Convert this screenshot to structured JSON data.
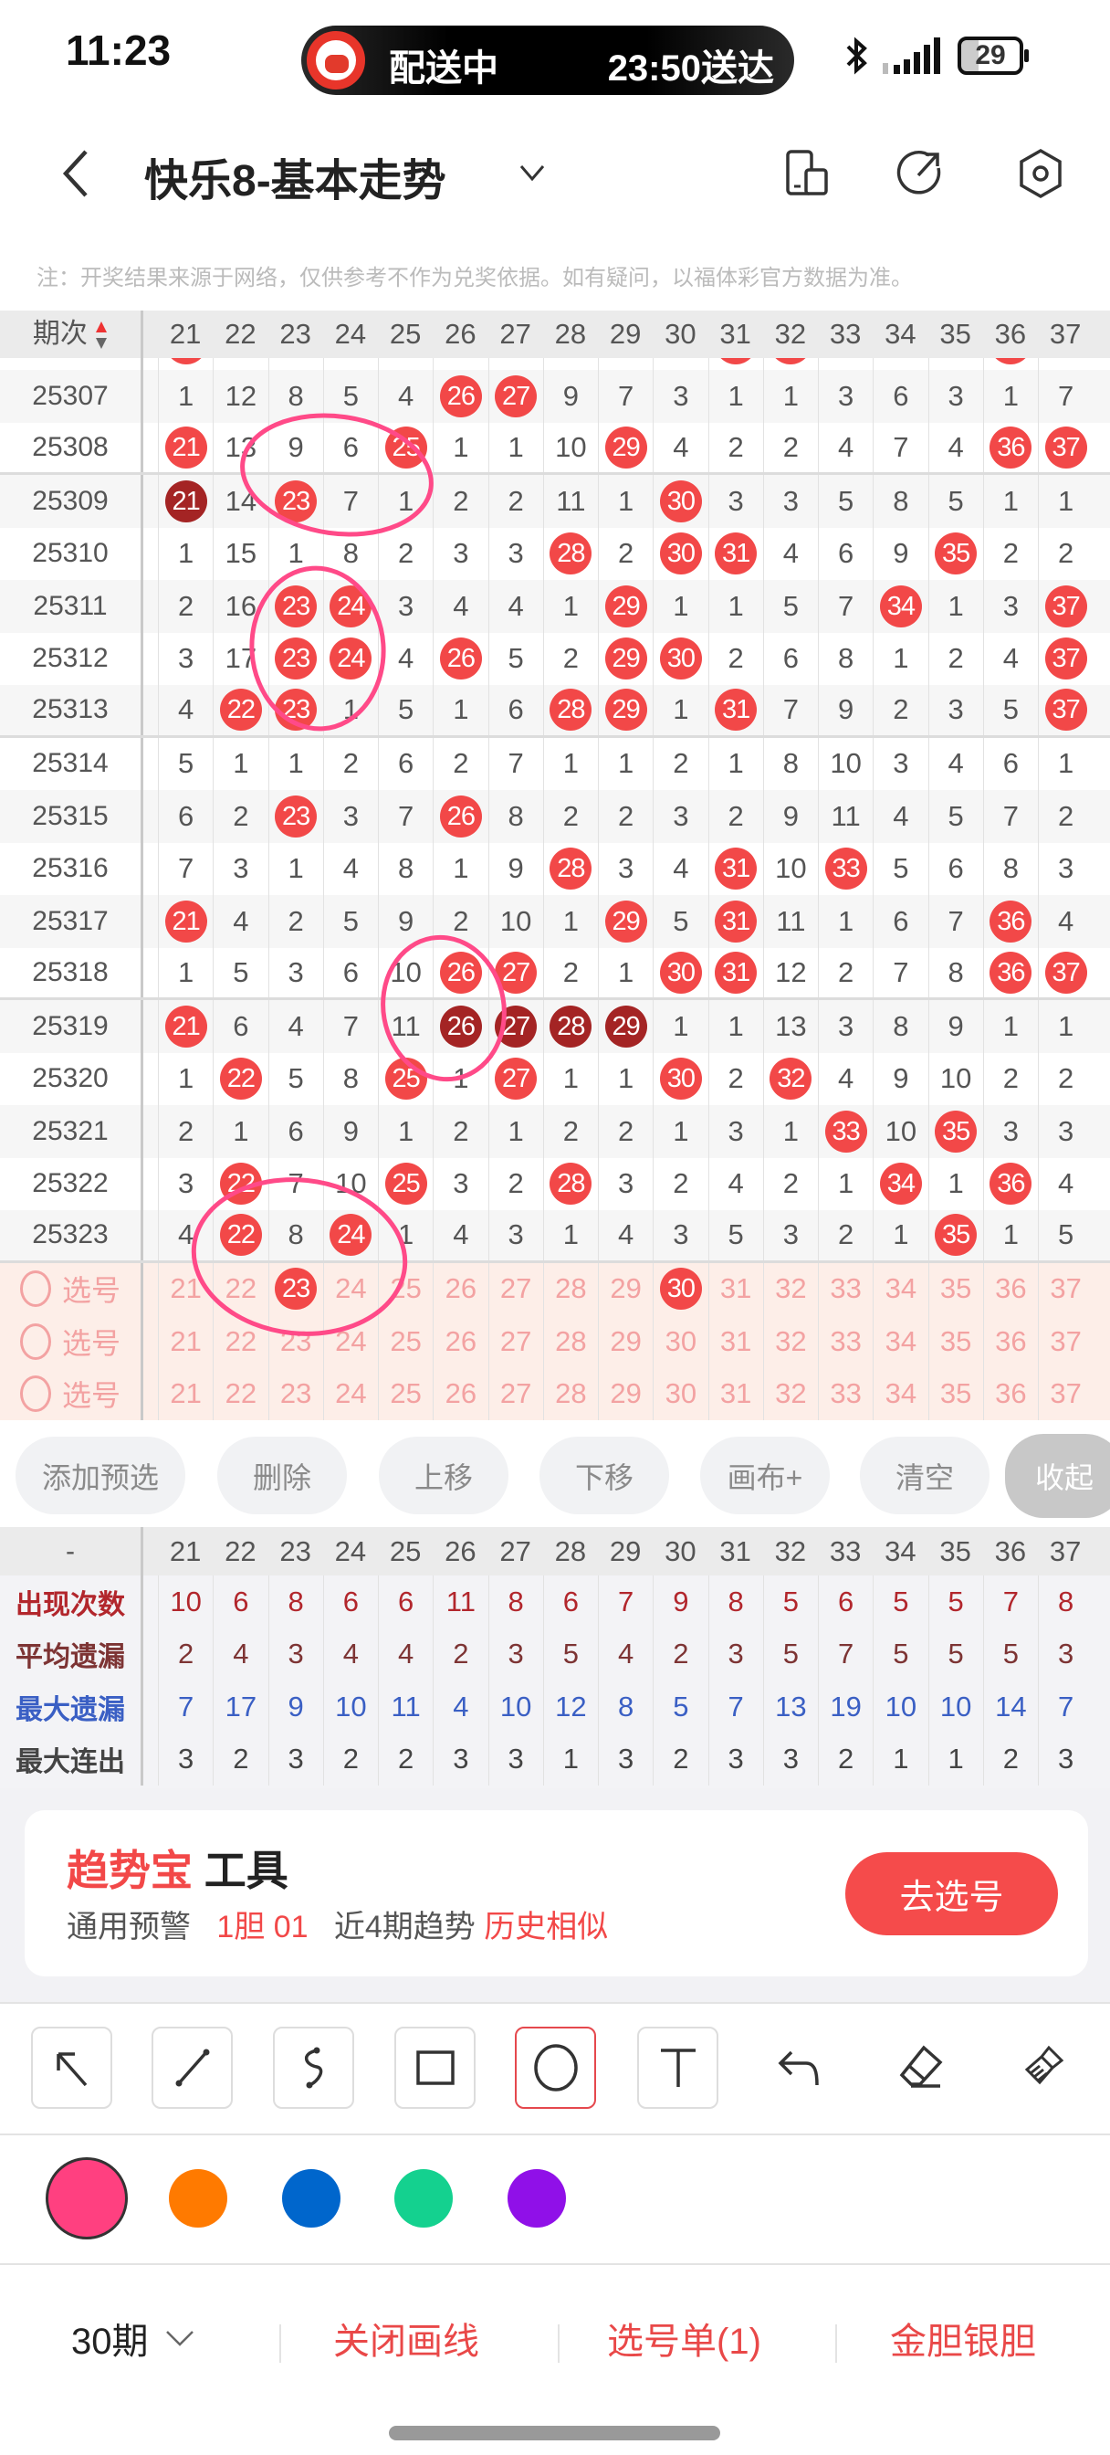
{
  "status_bar": {
    "time": "11:23",
    "live_activity": {
      "status": "配送中",
      "eta": "23:50送达"
    },
    "battery": "29",
    "icons": [
      "bluetooth-icon",
      "signal-icon",
      "battery-icon"
    ]
  },
  "header": {
    "title": "快乐8-基本走势",
    "icons": [
      "back-icon",
      "chevron-down-icon",
      "screen-rotate-icon",
      "share-icon",
      "settings-icon"
    ]
  },
  "note": "注：开奖结果来源于网络，仅供参考不作为兑奖依据。如有疑问，以福体彩官方数据为准。",
  "table": {
    "header_label": "期次",
    "columns": [
      "21",
      "22",
      "23",
      "24",
      "25",
      "26",
      "27",
      "28",
      "29",
      "30",
      "31",
      "32",
      "33",
      "34",
      "35",
      "36",
      "37"
    ],
    "partial_top_hits": [
      "21",
      "31",
      "32",
      "36"
    ],
    "rows": [
      {
        "issue": "25307",
        "values": [
          "1",
          "12",
          "8",
          "5",
          "4",
          "26",
          "27",
          "9",
          "7",
          "3",
          "1",
          "1",
          "3",
          "6",
          "3",
          "1",
          "7"
        ],
        "hits": [
          "26",
          "27"
        ],
        "dark": []
      },
      {
        "issue": "25308",
        "values": [
          "21",
          "13",
          "9",
          "6",
          "25",
          "1",
          "1",
          "10",
          "29",
          "4",
          "2",
          "2",
          "4",
          "7",
          "4",
          "36",
          "37"
        ],
        "hits": [
          "21",
          "25",
          "29",
          "36",
          "37"
        ],
        "dark": []
      },
      {
        "issue": "25309",
        "values": [
          "21",
          "14",
          "23",
          "7",
          "1",
          "2",
          "2",
          "11",
          "1",
          "30",
          "3",
          "3",
          "5",
          "8",
          "5",
          "1",
          "1"
        ],
        "hits": [
          "21",
          "23",
          "30"
        ],
        "dark": [
          "21"
        ]
      },
      {
        "issue": "25310",
        "values": [
          "1",
          "15",
          "1",
          "8",
          "2",
          "3",
          "3",
          "28",
          "2",
          "30",
          "31",
          "4",
          "6",
          "9",
          "35",
          "2",
          "2"
        ],
        "hits": [
          "28",
          "30",
          "31",
          "35"
        ],
        "dark": []
      },
      {
        "issue": "25311",
        "values": [
          "2",
          "16",
          "23",
          "24",
          "3",
          "4",
          "4",
          "1",
          "29",
          "1",
          "1",
          "5",
          "7",
          "34",
          "1",
          "3",
          "37"
        ],
        "hits": [
          "23",
          "24",
          "29",
          "34",
          "37"
        ],
        "dark": []
      },
      {
        "issue": "25312",
        "values": [
          "3",
          "17",
          "23",
          "24",
          "4",
          "26",
          "5",
          "2",
          "29",
          "30",
          "2",
          "6",
          "8",
          "1",
          "2",
          "4",
          "37"
        ],
        "hits": [
          "23",
          "24",
          "26",
          "29",
          "30",
          "37"
        ],
        "dark": []
      },
      {
        "issue": "25313",
        "values": [
          "4",
          "22",
          "23",
          "1",
          "5",
          "1",
          "6",
          "28",
          "29",
          "1",
          "31",
          "7",
          "9",
          "2",
          "3",
          "5",
          "37"
        ],
        "hits": [
          "22",
          "23",
          "28",
          "29",
          "31",
          "37"
        ],
        "dark": []
      },
      {
        "issue": "25314",
        "values": [
          "5",
          "1",
          "1",
          "2",
          "6",
          "2",
          "7",
          "1",
          "1",
          "2",
          "1",
          "8",
          "10",
          "3",
          "4",
          "6",
          "1"
        ],
        "hits": [],
        "dark": []
      },
      {
        "issue": "25315",
        "values": [
          "6",
          "2",
          "23",
          "3",
          "7",
          "26",
          "8",
          "2",
          "2",
          "3",
          "2",
          "9",
          "11",
          "4",
          "5",
          "7",
          "2"
        ],
        "hits": [
          "23",
          "26"
        ],
        "dark": []
      },
      {
        "issue": "25316",
        "values": [
          "7",
          "3",
          "1",
          "4",
          "8",
          "1",
          "9",
          "28",
          "3",
          "4",
          "31",
          "10",
          "33",
          "5",
          "6",
          "8",
          "3"
        ],
        "hits": [
          "28",
          "31",
          "33"
        ],
        "dark": []
      },
      {
        "issue": "25317",
        "values": [
          "21",
          "4",
          "2",
          "5",
          "9",
          "2",
          "10",
          "1",
          "29",
          "5",
          "31",
          "11",
          "1",
          "6",
          "7",
          "36",
          "4"
        ],
        "hits": [
          "21",
          "29",
          "31",
          "36"
        ],
        "dark": []
      },
      {
        "issue": "25318",
        "values": [
          "1",
          "5",
          "3",
          "6",
          "10",
          "26",
          "27",
          "2",
          "1",
          "30",
          "31",
          "12",
          "2",
          "7",
          "8",
          "36",
          "37"
        ],
        "hits": [
          "26",
          "27",
          "30",
          "31",
          "36",
          "37"
        ],
        "dark": []
      },
      {
        "issue": "25319",
        "values": [
          "21",
          "6",
          "4",
          "7",
          "11",
          "26",
          "27",
          "28",
          "29",
          "1",
          "1",
          "13",
          "3",
          "8",
          "9",
          "1",
          "1"
        ],
        "hits": [
          "21",
          "26",
          "27",
          "28",
          "29"
        ],
        "dark": [
          "26",
          "27",
          "28",
          "29"
        ]
      },
      {
        "issue": "25320",
        "values": [
          "1",
          "22",
          "5",
          "8",
          "25",
          "1",
          "27",
          "1",
          "1",
          "30",
          "2",
          "32",
          "4",
          "9",
          "10",
          "2",
          "2"
        ],
        "hits": [
          "22",
          "25",
          "27",
          "30",
          "32"
        ],
        "dark": []
      },
      {
        "issue": "25321",
        "values": [
          "2",
          "1",
          "6",
          "9",
          "1",
          "2",
          "1",
          "2",
          "2",
          "1",
          "3",
          "1",
          "33",
          "10",
          "35",
          "3",
          "3"
        ],
        "hits": [
          "33",
          "35"
        ],
        "dark": []
      },
      {
        "issue": "25322",
        "values": [
          "3",
          "22",
          "7",
          "10",
          "25",
          "3",
          "2",
          "28",
          "3",
          "2",
          "4",
          "2",
          "1",
          "34",
          "1",
          "36",
          "4"
        ],
        "hits": [
          "22",
          "25",
          "28",
          "34",
          "36"
        ],
        "dark": []
      },
      {
        "issue": "25323",
        "values": [
          "4",
          "22",
          "8",
          "24",
          "1",
          "4",
          "3",
          "1",
          "4",
          "3",
          "5",
          "3",
          "2",
          "1",
          "35",
          "1",
          "5"
        ],
        "hits": [
          "22",
          "24",
          "35"
        ],
        "dark": []
      }
    ],
    "select_rows": [
      {
        "label": "选号",
        "selected": [
          "23",
          "30"
        ]
      },
      {
        "label": "选号",
        "selected": []
      },
      {
        "label": "选号",
        "selected": []
      }
    ]
  },
  "actions": [
    "添加预选",
    "删除",
    "上移",
    "下移",
    "画布+",
    "清空",
    "收起"
  ],
  "stats": {
    "header_label": "-",
    "rows": [
      {
        "label": "出现次数",
        "color": "#b2262c",
        "values": [
          "10",
          "6",
          "8",
          "6",
          "6",
          "11",
          "8",
          "6",
          "7",
          "9",
          "8",
          "5",
          "6",
          "5",
          "5",
          "7",
          "8"
        ]
      },
      {
        "label": "平均遗漏",
        "color": "#7d3434",
        "values": [
          "2",
          "4",
          "3",
          "4",
          "4",
          "2",
          "3",
          "5",
          "4",
          "2",
          "3",
          "5",
          "7",
          "5",
          "5",
          "5",
          "3"
        ]
      },
      {
        "label": "最大遗漏",
        "color": "#3a5fc4",
        "values": [
          "7",
          "17",
          "9",
          "10",
          "11",
          "4",
          "10",
          "12",
          "8",
          "5",
          "7",
          "13",
          "19",
          "10",
          "10",
          "14",
          "7"
        ]
      },
      {
        "label": "最大连出",
        "color": "#444444",
        "values": [
          "3",
          "2",
          "3",
          "2",
          "2",
          "3",
          "3",
          "1",
          "3",
          "2",
          "3",
          "3",
          "2",
          "1",
          "1",
          "2",
          "3"
        ]
      }
    ]
  },
  "promo": {
    "brand": "趋势宝",
    "title": "工具",
    "warn_label": "通用预警",
    "warn_value": "1胆 01",
    "trend_label": "近4期趋势",
    "trend_value": "历史相似",
    "button": "去选号"
  },
  "tools": {
    "items": [
      "arrow-tool",
      "line-tool",
      "curve-tool",
      "rectangle-tool",
      "circle-tool",
      "text-tool",
      "undo",
      "eraser",
      "clear-brush"
    ],
    "selected": "circle-tool"
  },
  "colors": {
    "options": [
      "#ff4080",
      "#ff7a00",
      "#0066cc",
      "#14d18f",
      "#9010e8"
    ],
    "selected": "#ff4080"
  },
  "bottom_nav": {
    "period": "30期",
    "close_draw": "关闭画线",
    "pick_list": "选号单(1)",
    "gold_silver": "金胆银胆"
  },
  "accent": "#f24848"
}
